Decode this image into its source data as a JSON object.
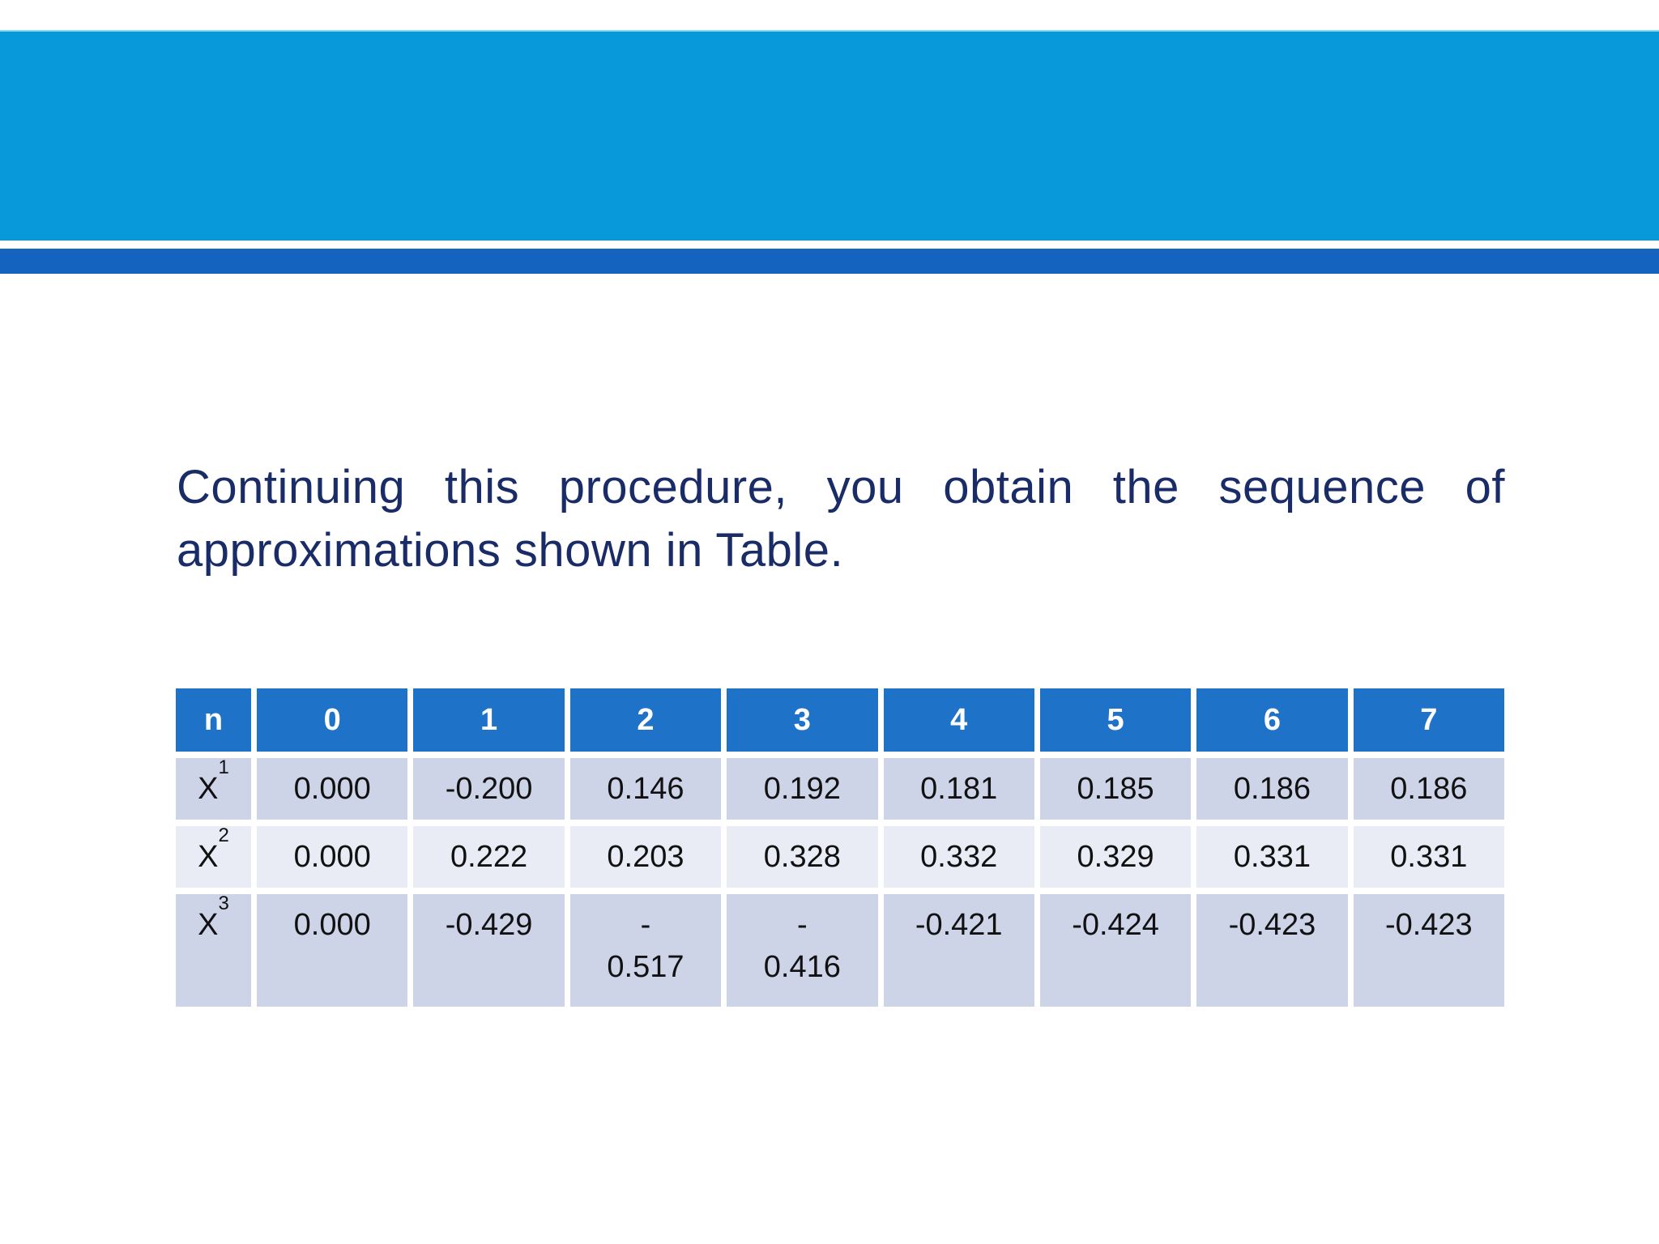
{
  "theme": {
    "background": "#ffffff",
    "top_band_color": "#0899DB",
    "top_band_edge_color": "#8ed8ef",
    "accent_stripe_color": "#1463BE",
    "table_header_color": "#1E72C8",
    "table_band_color_dark": "#CDD4E8",
    "table_band_color_light": "#E9EBF5",
    "paragraph_text_color": "#1A2C68",
    "table_text_color": "#111111",
    "table_header_text_color": "#ffffff"
  },
  "paragraph": {
    "line1": "Continuing this procedure, you obtain the sequence of",
    "line2": "approximations shown in Table."
  },
  "table": {
    "columns": [
      "n",
      "0",
      "1",
      "2",
      "3",
      "4",
      "5",
      "6",
      "7"
    ],
    "rows": [
      {
        "label_base": "X",
        "label_sub": "1",
        "values": [
          "0.000",
          "-0.200",
          "0.146",
          "0.192",
          "0.181",
          "0.185",
          "0.186",
          "0.186"
        ]
      },
      {
        "label_base": "X",
        "label_sub": "2",
        "values": [
          "0.000",
          "0.222",
          "0.203",
          "0.328",
          "0.332",
          "0.329",
          "0.331",
          "0.331"
        ]
      },
      {
        "label_base": "X",
        "label_sub": "3",
        "values": [
          "0.000",
          "-0.429",
          "-\n0.517",
          "-\n0.416",
          "-0.421",
          "-0.424",
          "-0.423",
          "-0.423"
        ]
      }
    ]
  }
}
